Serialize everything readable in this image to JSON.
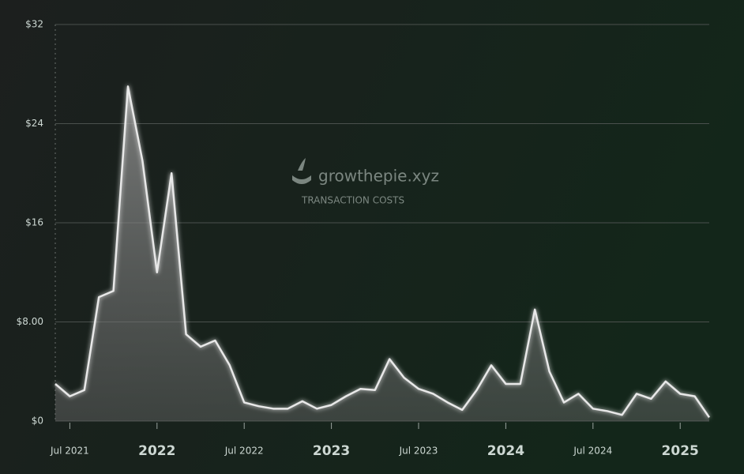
{
  "chart_data": {
    "type": "line",
    "watermark": {
      "brand": "growthepie.xyz",
      "subtitle": "TRANSACTION COSTS"
    },
    "x": [
      "2021-06",
      "2021-07",
      "2021-08",
      "2021-09",
      "2021-10",
      "2021-11",
      "2021-12",
      "2022-01",
      "2022-02",
      "2022-03",
      "2022-04",
      "2022-05",
      "2022-06",
      "2022-07",
      "2022-08",
      "2022-09",
      "2022-10",
      "2022-11",
      "2022-12",
      "2023-01",
      "2023-02",
      "2023-03",
      "2023-04",
      "2023-05",
      "2023-06",
      "2023-07",
      "2023-08",
      "2023-09",
      "2023-10",
      "2023-11",
      "2023-12",
      "2024-01",
      "2024-02",
      "2024-03",
      "2024-04",
      "2024-05",
      "2024-06",
      "2024-07",
      "2024-08",
      "2024-09",
      "2024-10",
      "2024-11",
      "2024-12",
      "2025-01",
      "2025-02",
      "2025-03"
    ],
    "series": [
      {
        "color": "#e8e8e8",
        "values": [
          3,
          2,
          2.5,
          10,
          10.5,
          27,
          21,
          12,
          20,
          7,
          6,
          6.5,
          4.5,
          1.5,
          1.2,
          1,
          1,
          1.6,
          1,
          1.3,
          2,
          2.6,
          2.5,
          5,
          3.5,
          2.6,
          2.2,
          1.5,
          0.9,
          2.5,
          4.5,
          3,
          3,
          9,
          4,
          1.5,
          2.2,
          1,
          0.8,
          0.5,
          2.2,
          1.8,
          3.2,
          2.2,
          2,
          0.3
        ]
      }
    ],
    "xlim": [
      "2021-06",
      "2025-03"
    ],
    "xticks": [
      {
        "value": "2021-07",
        "label": "Jul 2021"
      },
      {
        "value": "2022-01",
        "label": "2022"
      },
      {
        "value": "2022-07",
        "label": "Jul 2022"
      },
      {
        "value": "2023-01",
        "label": "2023"
      },
      {
        "value": "2023-07",
        "label": "Jul 2023"
      },
      {
        "value": "2024-01",
        "label": "2024"
      },
      {
        "value": "2024-07",
        "label": "Jul 2024"
      },
      {
        "value": "2025-01",
        "label": "2025"
      }
    ],
    "ylim": [
      0,
      32
    ],
    "yticks": [
      {
        "value": 0,
        "label": "$0"
      },
      {
        "value": 8,
        "label": "$8.00"
      },
      {
        "value": 16,
        "label": "$16"
      },
      {
        "value": 24,
        "label": "$24"
      },
      {
        "value": 32,
        "label": "$32"
      }
    ],
    "grid": true
  }
}
